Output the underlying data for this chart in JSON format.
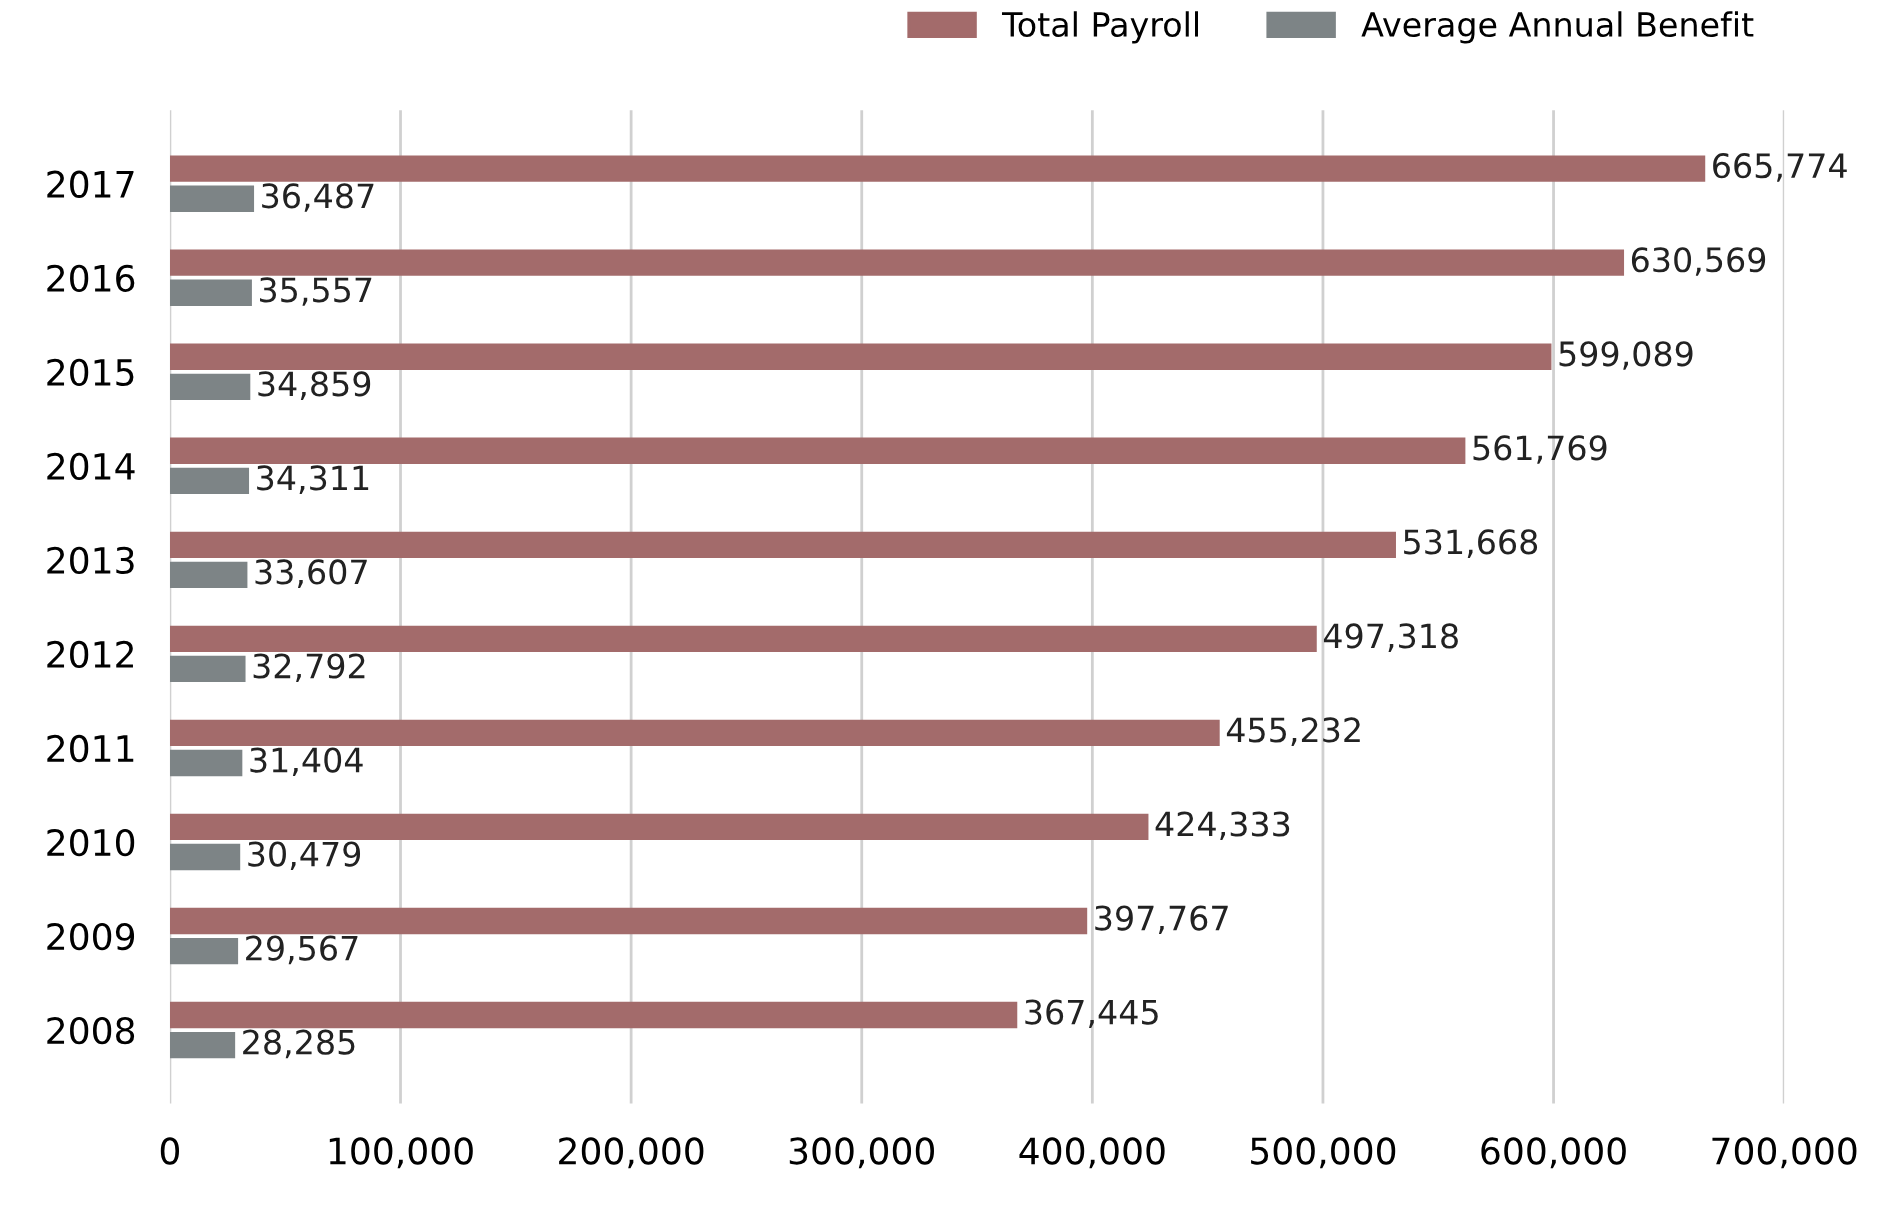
{
  "chart_data": {
    "type": "bar",
    "orientation": "horizontal",
    "categories": [
      "2017",
      "2016",
      "2015",
      "2014",
      "2013",
      "2012",
      "2011",
      "2010",
      "2009",
      "2008"
    ],
    "series": [
      {
        "name": "Total Payroll",
        "color": "#a36b6b",
        "values": [
          665774,
          630569,
          599089,
          561769,
          531668,
          497318,
          455232,
          424333,
          397767,
          367445
        ],
        "value_labels": [
          "665,774",
          "630,569",
          "599,089",
          "561,769",
          "531,668",
          "497,318",
          "455,232",
          "424,333",
          "397,767",
          "367,445"
        ]
      },
      {
        "name": "Average Annual Benefit",
        "color": "#7d8486",
        "values": [
          36487,
          35557,
          34859,
          34311,
          33607,
          32792,
          31404,
          30479,
          29567,
          28285
        ],
        "value_labels": [
          "36,487",
          "35,557",
          "34,859",
          "34,311",
          "33,607",
          "32,792",
          "31,404",
          "30,479",
          "29,567",
          "28,285"
        ]
      }
    ],
    "xlim": [
      0,
      700000
    ],
    "xticks": [
      0,
      {
        "value": 100000,
        "label": "100,000"
      },
      {
        "value": 200000,
        "label": "200,000"
      },
      {
        "value": 300000,
        "label": "300,000"
      },
      {
        "value": 400000,
        "label": "400,000"
      },
      {
        "value": 500000,
        "label": "500,000"
      },
      {
        "value": 600000,
        "label": "600,000"
      },
      {
        "value": 700000,
        "label": "700,000"
      }
    ],
    "grid": "x",
    "legend": "top right"
  }
}
